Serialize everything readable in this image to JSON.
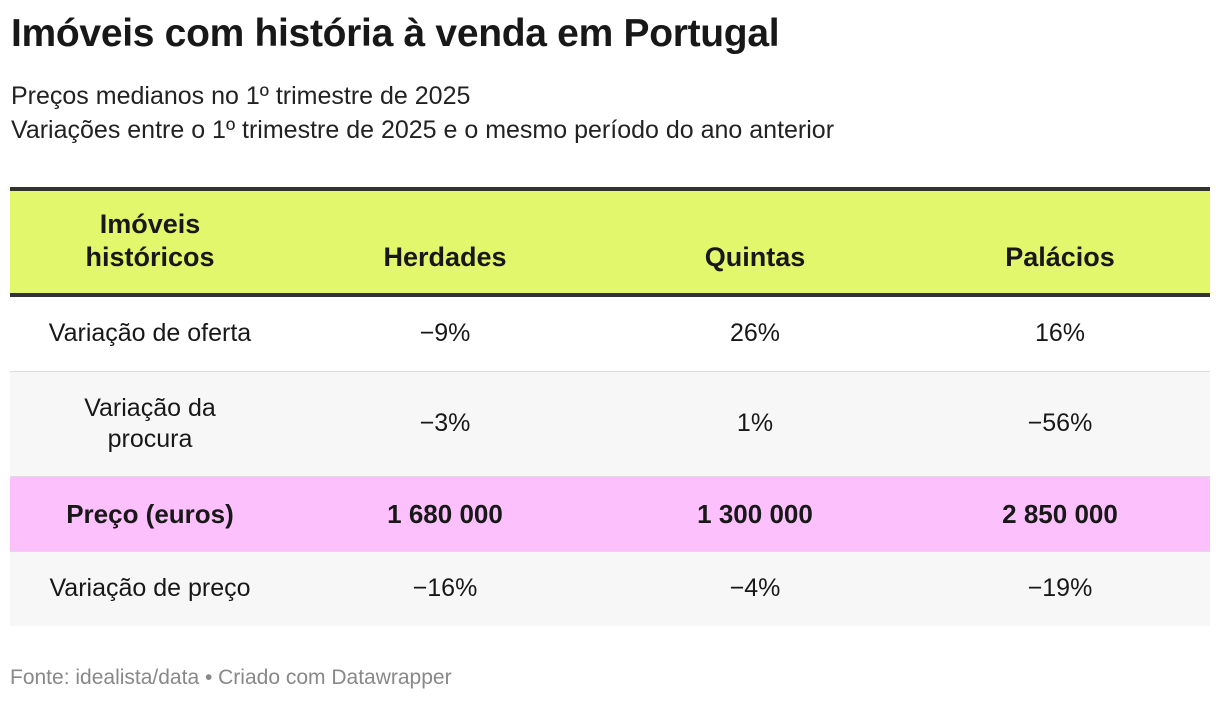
{
  "title": "Imóveis com história à venda em Portugal",
  "subtitle_line1": "Preços medianos no 1º trimestre de 2025",
  "subtitle_line2": "Variações entre o 1º trimestre de 2025 e o mesmo período do ano anterior",
  "footer": "Fonte: idealista/data • Criado com Datawrapper",
  "colors": {
    "header_bg": "#e3f76c",
    "price_row_bg": "#fcc0fc",
    "alt_row_bg": "#f7f7f7",
    "header_border": "#333333"
  },
  "chart_data": {
    "type": "table",
    "columns": [
      "Imóveis históricos",
      "Herdades",
      "Quintas",
      "Palácios"
    ],
    "rows": [
      [
        "Variação de oferta",
        "−9%",
        "26%",
        "16%"
      ],
      [
        "Variação da procura",
        "−3%",
        "1%",
        "−56%"
      ],
      [
        "Preço (euros)",
        "1 680 000",
        "1 300 000",
        "2 850 000"
      ],
      [
        "Variação de preço",
        "−16%",
        "−4%",
        "−19%"
      ]
    ]
  }
}
